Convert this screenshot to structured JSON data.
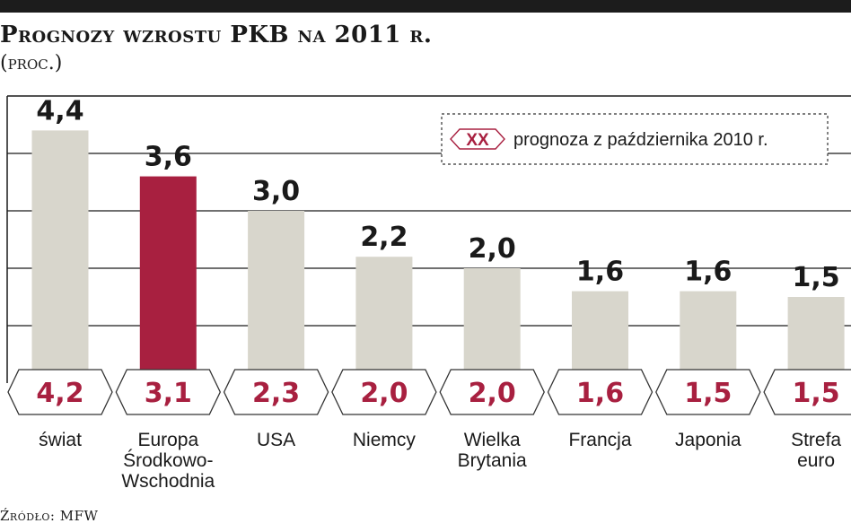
{
  "title": "Prognozy wzrostu PKB na 2011 r.",
  "subtitle": "(proc.)",
  "source": "Źródło: MFW",
  "legend": {
    "marker": "XX",
    "text": "prognoza z października 2010 r."
  },
  "colors": {
    "bar": "#d8d6cc",
    "highlight": "#a82040",
    "grid": "#1a1a1a",
    "hex_text": "#a82040"
  },
  "chart_data": {
    "type": "bar",
    "title": "Prognozy wzrostu PKB na 2011 r.",
    "ylabel": "(proc.)",
    "ylim": [
      0,
      5
    ],
    "grid": true,
    "legend_position": "top-right",
    "categories": [
      "świat",
      "Europa Środkowo-Wschodnia",
      "USA",
      "Niemcy",
      "Wielka Brytania",
      "Francja",
      "Japonia",
      "Strefa euro"
    ],
    "category_lines": [
      [
        "świat"
      ],
      [
        "Europa",
        "Środkowo-",
        "Wschodnia"
      ],
      [
        "USA"
      ],
      [
        "Niemcy"
      ],
      [
        "Wielka",
        "Brytania"
      ],
      [
        "Francja"
      ],
      [
        "Japonia"
      ],
      [
        "Strefa",
        "euro"
      ]
    ],
    "highlight_index": 1,
    "series": [
      {
        "values": [
          4.4,
          3.6,
          3.0,
          2.2,
          2.0,
          1.6,
          1.6,
          1.5
        ],
        "labels": [
          "4,4",
          "3,6",
          "3,0",
          "2,2",
          "2,0",
          "1,6",
          "1,6",
          "1,5"
        ]
      },
      {
        "name": "prognoza z października 2010 r.",
        "values": [
          4.2,
          3.1,
          2.3,
          2.0,
          2.0,
          1.6,
          1.5,
          1.5
        ],
        "labels": [
          "4,2",
          "3,1",
          "2,3",
          "2,0",
          "2,0",
          "1,6",
          "1,5",
          "1,5"
        ]
      }
    ]
  }
}
